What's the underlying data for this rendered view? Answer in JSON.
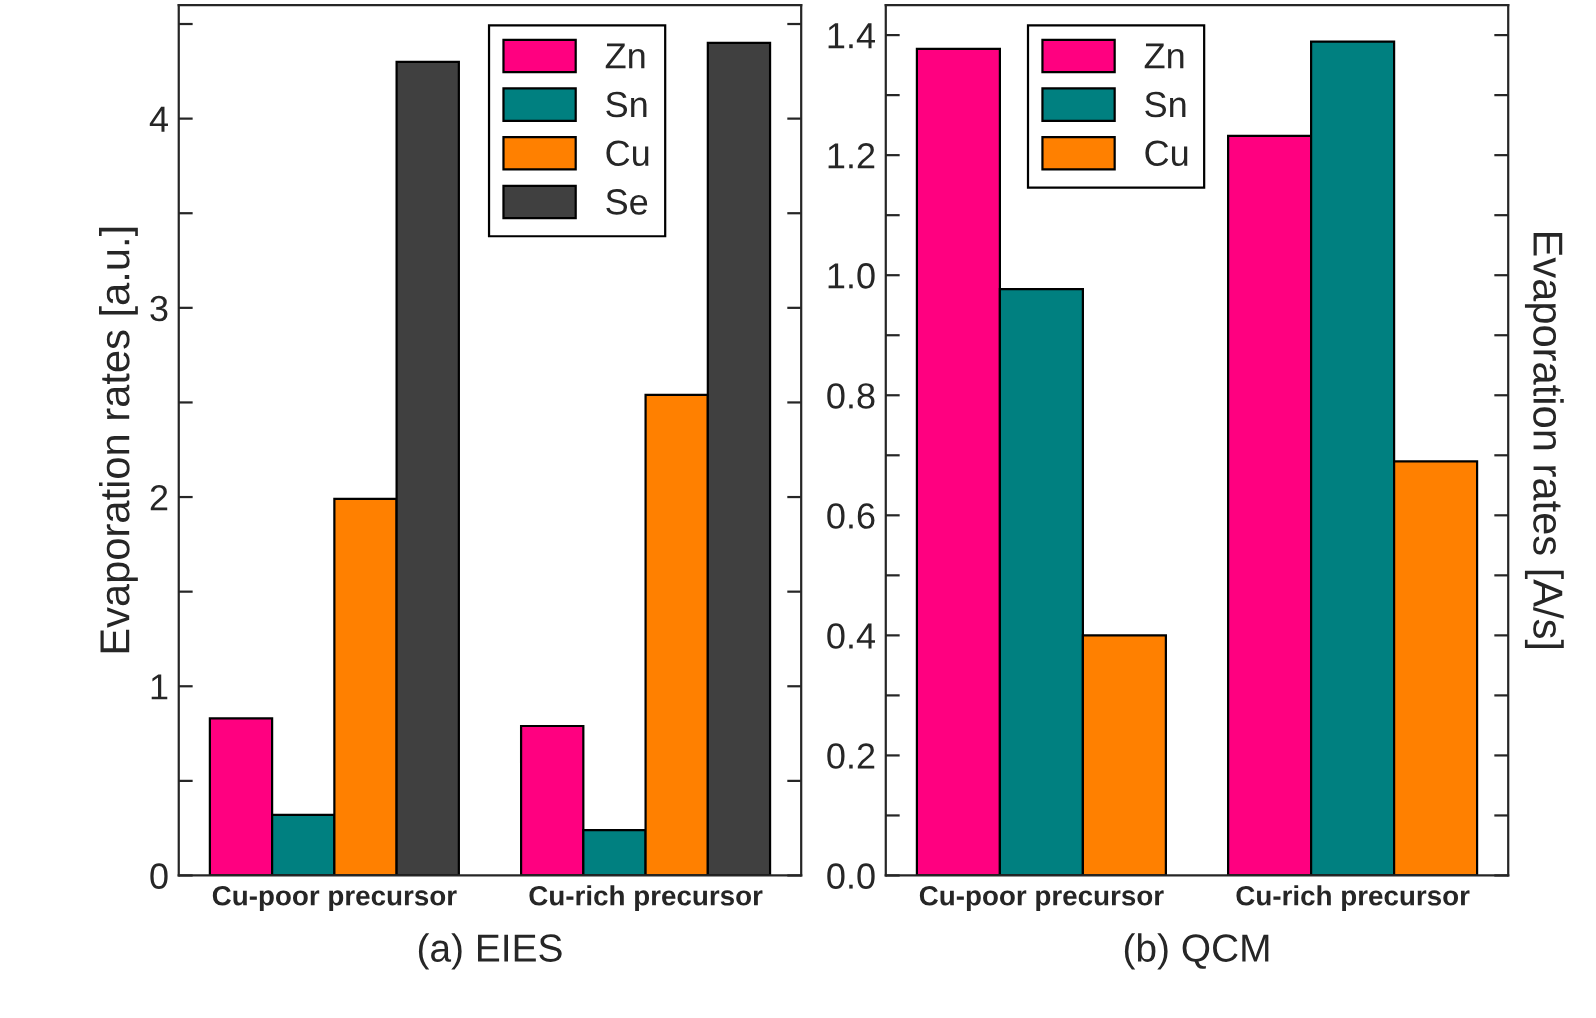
{
  "chart_data": [
    {
      "type": "bar",
      "xlabel": "(a) EIES",
      "ylabel": "Evaporation rates [a.u.]",
      "categories": [
        "Cu-poor precursor",
        "Cu-rich precursor"
      ],
      "series": [
        {
          "name": "Zn",
          "color": "#ff0080",
          "values": [
            0.83,
            0.79
          ]
        },
        {
          "name": "Sn",
          "color": "#008080",
          "values": [
            0.32,
            0.24
          ]
        },
        {
          "name": "Cu",
          "color": "#ff8000",
          "values": [
            1.99,
            2.54
          ]
        },
        {
          "name": "Se",
          "color": "#404040",
          "values": [
            4.3,
            4.4
          ]
        }
      ],
      "ylim": [
        0,
        4.6
      ],
      "yticks": [
        0,
        {
          "value": 0.5,
          "label": null
        },
        1,
        {
          "value": 1.5,
          "label": null
        },
        2,
        {
          "value": 2.5,
          "label": null
        },
        3,
        {
          "value": 3.5,
          "label": null
        },
        4,
        {
          "value": 4.5,
          "label": null
        }
      ],
      "legend": "top"
    },
    {
      "type": "bar",
      "xlabel": "(b) QCM",
      "ylabel": "Evaporation rates [A/s]",
      "categories": [
        "Cu-poor precursor",
        "Cu-rich precursor"
      ],
      "series": [
        {
          "name": "Zn",
          "color": "#ff0080",
          "values": [
            1.377,
            1.232
          ]
        },
        {
          "name": "Sn",
          "color": "#008080",
          "values": [
            0.977,
            1.389
          ]
        },
        {
          "name": "Cu",
          "color": "#ff8000",
          "values": [
            0.4,
            0.69
          ]
        }
      ],
      "ylim": [
        0,
        1.45
      ],
      "yticks": [
        "0.0",
        {
          "value": 0.1,
          "label": null
        },
        {
          "value": 0.2,
          "label": "0.2"
        },
        {
          "value": 0.3,
          "label": null
        },
        {
          "value": 0.4,
          "label": "0.4"
        },
        {
          "value": 0.5,
          "label": null
        },
        {
          "value": 0.6,
          "label": "0.6"
        },
        {
          "value": 0.7,
          "label": null
        },
        {
          "value": 0.8,
          "label": "0.8"
        },
        {
          "value": 0.9,
          "label": null
        },
        {
          "value": 1.0,
          "label": "1.0"
        },
        {
          "value": 1.1,
          "label": null
        },
        {
          "value": 1.2,
          "label": "1.2"
        },
        {
          "value": 1.3,
          "label": null
        },
        {
          "value": 1.4,
          "label": "1.4"
        }
      ],
      "legend": "top"
    }
  ]
}
